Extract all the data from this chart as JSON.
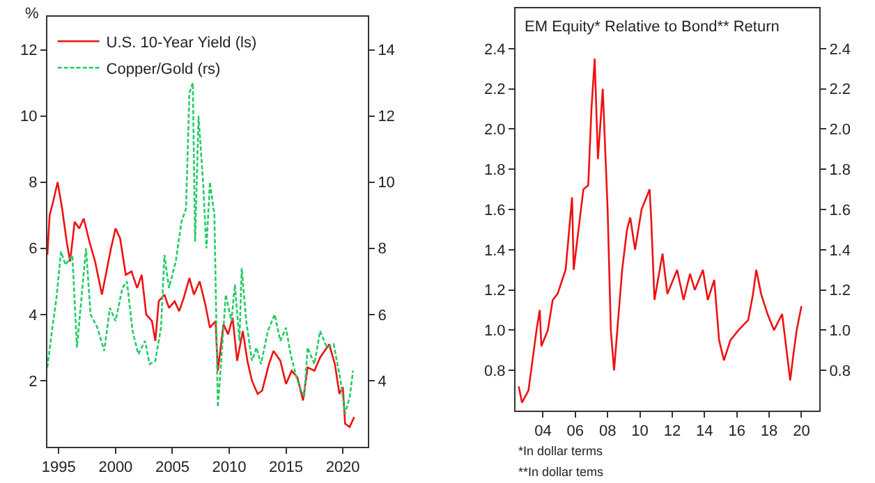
{
  "chart_data": [
    {
      "type": "line",
      "ylabel": "%",
      "legend": "top left",
      "xlim": [
        1994,
        2022.2
      ],
      "xticks": [
        1995,
        2000,
        2005,
        2010,
        2015,
        2020
      ],
      "ylim": [
        0,
        13
      ],
      "yticks": [
        2,
        4,
        6,
        8,
        10,
        12
      ],
      "y2lim": [
        2,
        15
      ],
      "y2ticks": [
        4,
        6,
        8,
        10,
        12,
        14
      ],
      "series": [
        {
          "name": "U.S. 10-Year Yield (ls)",
          "color": "#ee1111",
          "line_style": "solid",
          "x": [
            1994.0,
            1994.2,
            1994.5,
            1994.9,
            1995.3,
            1995.7,
            1996.0,
            1996.4,
            1996.8,
            1997.2,
            1997.7,
            1998.2,
            1998.8,
            1999.2,
            1999.6,
            2000.0,
            2000.4,
            2000.9,
            2001.4,
            2001.9,
            2002.3,
            2002.7,
            2003.2,
            2003.5,
            2003.8,
            2004.3,
            2004.7,
            2005.2,
            2005.6,
            2006.0,
            2006.5,
            2006.9,
            2007.4,
            2007.9,
            2008.3,
            2008.8,
            2009.0,
            2009.5,
            2009.9,
            2010.3,
            2010.7,
            2011.2,
            2011.6,
            2012.0,
            2012.5,
            2012.9,
            2013.5,
            2013.9,
            2014.5,
            2015.0,
            2015.5,
            2016.0,
            2016.5,
            2016.9,
            2017.5,
            2018.0,
            2018.8,
            2019.3,
            2019.7,
            2020.0,
            2020.2,
            2020.6,
            2021.0
          ],
          "values": [
            5.8,
            7.0,
            7.4,
            8.0,
            7.2,
            6.2,
            5.6,
            6.8,
            6.6,
            6.9,
            6.2,
            5.6,
            4.6,
            5.3,
            6.0,
            6.6,
            6.3,
            5.2,
            5.3,
            4.8,
            5.2,
            4.0,
            3.8,
            3.2,
            4.4,
            4.6,
            4.2,
            4.4,
            4.1,
            4.5,
            5.1,
            4.6,
            5.0,
            4.3,
            3.6,
            3.8,
            2.3,
            3.7,
            3.4,
            3.9,
            2.6,
            3.5,
            2.6,
            2.0,
            1.6,
            1.7,
            2.5,
            2.9,
            2.6,
            1.9,
            2.3,
            2.1,
            1.4,
            2.4,
            2.3,
            2.7,
            3.1,
            2.5,
            1.6,
            1.8,
            0.7,
            0.6,
            0.9
          ]
        },
        {
          "name": "Copper/Gold (rs)",
          "color": "#22cc66",
          "line_style": "dashed",
          "axis": "y2",
          "x": [
            1994.0,
            1994.4,
            1994.8,
            1995.2,
            1995.6,
            1996.2,
            1996.6,
            1997.0,
            1997.4,
            1997.8,
            1998.4,
            1999.0,
            1999.5,
            2000.0,
            2000.6,
            2001.0,
            2001.5,
            2002.0,
            2002.6,
            2003.0,
            2003.5,
            2004.0,
            2004.3,
            2004.7,
            2005.3,
            2005.8,
            2006.2,
            2006.5,
            2006.8,
            2007.0,
            2007.3,
            2007.7,
            2008.0,
            2008.3,
            2008.7,
            2009.0,
            2009.3,
            2009.7,
            2010.2,
            2010.5,
            2010.9,
            2011.1,
            2011.5,
            2012.0,
            2012.4,
            2012.8,
            2013.4,
            2014.0,
            2014.5,
            2015.0,
            2015.4,
            2016.0,
            2016.6,
            2016.9,
            2017.5,
            2018.0,
            2018.6,
            2019.2,
            2019.8,
            2020.2,
            2020.6,
            2020.9
          ],
          "values": [
            4.4,
            5.5,
            6.5,
            7.9,
            7.5,
            7.8,
            5.0,
            6.5,
            8.0,
            6.0,
            5.6,
            4.9,
            6.2,
            5.8,
            6.8,
            7.0,
            5.5,
            4.8,
            5.2,
            4.5,
            4.6,
            5.6,
            7.8,
            6.8,
            7.6,
            8.8,
            9.2,
            12.7,
            13.0,
            8.2,
            12.0,
            10.0,
            8.0,
            10.0,
            9.0,
            3.2,
            4.6,
            6.6,
            5.8,
            6.9,
            5.2,
            7.4,
            5.8,
            4.6,
            5.0,
            4.5,
            5.5,
            6.0,
            5.2,
            5.6,
            4.8,
            4.0,
            3.5,
            5.0,
            4.5,
            5.5,
            5.0,
            5.1,
            4.0,
            3.0,
            3.5,
            4.3
          ]
        }
      ]
    },
    {
      "type": "line",
      "title": "EM Equity* Relative to Bond** Return",
      "xlim": [
        2002.3,
        2021.1
      ],
      "xticks": [
        {
          "value": 2004,
          "label": "04"
        },
        {
          "value": 2006,
          "label": "06"
        },
        {
          "value": 2008,
          "label": "08"
        },
        {
          "value": 2010,
          "label": "10"
        },
        {
          "value": 2012,
          "label": "12"
        },
        {
          "value": 2014,
          "label": "14"
        },
        {
          "value": 2016,
          "label": "16"
        },
        {
          "value": 2018,
          "label": "18"
        },
        {
          "value": 2020,
          "label": "20"
        }
      ],
      "ylim": [
        0.6,
        2.6
      ],
      "yticks": [
        0.8,
        {
          "value": 1,
          "label": "1.0"
        },
        1.2,
        1.4,
        1.6,
        1.8,
        {
          "value": 2,
          "label": "2.0"
        },
        2.2,
        2.4
      ],
      "y2lim": [
        0.6,
        2.6
      ],
      "y2ticks": [
        0.8,
        {
          "value": 1,
          "label": "1.0"
        },
        1.2,
        1.4,
        1.6,
        1.8,
        {
          "value": 2,
          "label": "2.0"
        },
        2.2,
        2.4
      ],
      "annotations": [
        "*In dollar terms",
        "**In dollar tems"
      ],
      "series": [
        {
          "color": "#ee1111",
          "x": [
            2002.5,
            2002.7,
            2003.1,
            2003.4,
            2003.6,
            2003.8,
            2003.9,
            2004.3,
            2004.6,
            2004.9,
            2005.4,
            2005.6,
            2005.8,
            2005.9,
            2006.2,
            2006.5,
            2006.8,
            2007.0,
            2007.2,
            2007.4,
            2007.7,
            2008.0,
            2008.2,
            2008.4,
            2008.6,
            2008.9,
            2009.2,
            2009.4,
            2009.7,
            2010.1,
            2010.6,
            2010.7,
            2010.9,
            2011.4,
            2011.7,
            2012.3,
            2012.7,
            2013.1,
            2013.4,
            2013.9,
            2014.2,
            2014.6,
            2014.9,
            2015.2,
            2015.6,
            2016.1,
            2016.7,
            2017.0,
            2017.2,
            2017.5,
            2017.9,
            2018.3,
            2018.8,
            2019.0,
            2019.3,
            2019.5,
            2019.7,
            2020.0
          ],
          "values": [
            0.72,
            0.64,
            0.7,
            0.88,
            1.0,
            1.1,
            0.92,
            1.0,
            1.15,
            1.18,
            1.3,
            1.48,
            1.66,
            1.3,
            1.5,
            1.7,
            1.72,
            2.1,
            2.35,
            1.85,
            2.2,
            1.6,
            1.0,
            0.8,
            1.0,
            1.3,
            1.5,
            1.56,
            1.4,
            1.6,
            1.7,
            1.55,
            1.15,
            1.38,
            1.18,
            1.3,
            1.15,
            1.28,
            1.2,
            1.3,
            1.15,
            1.25,
            0.95,
            0.85,
            0.95,
            1.0,
            1.05,
            1.18,
            1.3,
            1.18,
            1.08,
            1.0,
            1.08,
            0.95,
            0.75,
            0.88,
            1.0,
            1.12
          ]
        }
      ]
    }
  ]
}
